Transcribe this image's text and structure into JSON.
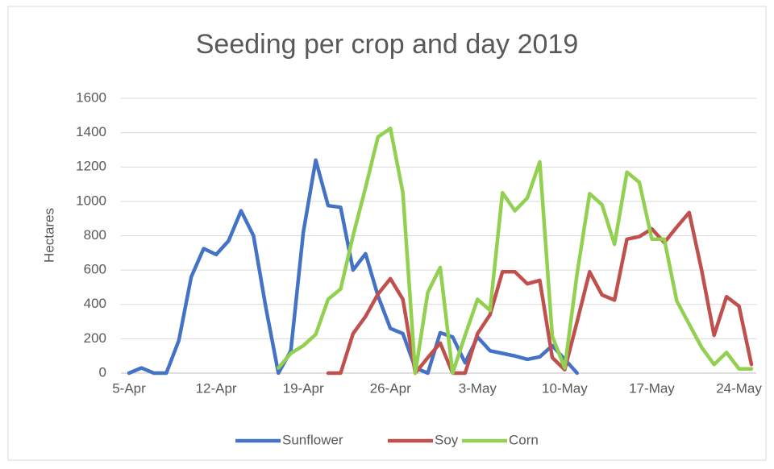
{
  "chart_data": {
    "type": "line",
    "title": "Seeding per crop and day 2019",
    "y_label": "Hectares",
    "categories": [
      "5-Apr",
      null,
      null,
      null,
      null,
      null,
      null,
      "12-Apr",
      null,
      null,
      null,
      null,
      null,
      null,
      "19-Apr",
      null,
      null,
      null,
      null,
      null,
      null,
      "26-Apr",
      null,
      null,
      null,
      null,
      null,
      null,
      "3-May",
      null,
      null,
      null,
      null,
      null,
      null,
      "10-May",
      null,
      null,
      null,
      null,
      null,
      null,
      "17-May",
      null,
      null,
      null,
      null,
      null,
      null,
      "24-May",
      null
    ],
    "series": [
      {
        "name": "Sunflower",
        "color": "#4472c4",
        "values": [
          0,
          30,
          0,
          0,
          190,
          560,
          725,
          690,
          770,
          945,
          800,
          380,
          0,
          130,
          820,
          1240,
          975,
          965,
          600,
          695,
          450,
          260,
          230,
          30,
          0,
          235,
          210,
          60,
          210,
          130,
          115,
          100,
          80,
          95,
          160,
          80,
          0,
          null,
          null,
          null,
          null,
          null,
          null,
          null,
          null,
          null,
          null,
          null,
          null,
          null,
          null
        ]
      },
      {
        "name": "Soy",
        "color": "#c0504d",
        "values": [
          null,
          null,
          null,
          null,
          null,
          null,
          null,
          null,
          null,
          null,
          null,
          null,
          null,
          null,
          null,
          null,
          0,
          0,
          230,
          330,
          460,
          550,
          430,
          0,
          90,
          175,
          0,
          0,
          230,
          340,
          590,
          590,
          520,
          540,
          90,
          20,
          300,
          590,
          455,
          425,
          780,
          795,
          840,
          760,
          850,
          935,
          600,
          220,
          445,
          390,
          50
        ]
      },
      {
        "name": "Corn",
        "color": "#92d050",
        "values": [
          null,
          null,
          null,
          null,
          null,
          null,
          null,
          null,
          null,
          null,
          null,
          null,
          30,
          115,
          160,
          225,
          430,
          490,
          800,
          1080,
          1375,
          1425,
          1050,
          0,
          470,
          615,
          0,
          220,
          430,
          365,
          1050,
          945,
          1020,
          1230,
          215,
          30,
          580,
          1045,
          980,
          750,
          1170,
          1110,
          780,
          780,
          420,
          285,
          150,
          50,
          120,
          25,
          25
        ]
      }
    ],
    "ylim": [
      0,
      1600
    ],
    "yticks": [
      0,
      200,
      400,
      600,
      800,
      1000,
      1200,
      1400,
      1600
    ],
    "grid": true,
    "legend": "bottom"
  }
}
